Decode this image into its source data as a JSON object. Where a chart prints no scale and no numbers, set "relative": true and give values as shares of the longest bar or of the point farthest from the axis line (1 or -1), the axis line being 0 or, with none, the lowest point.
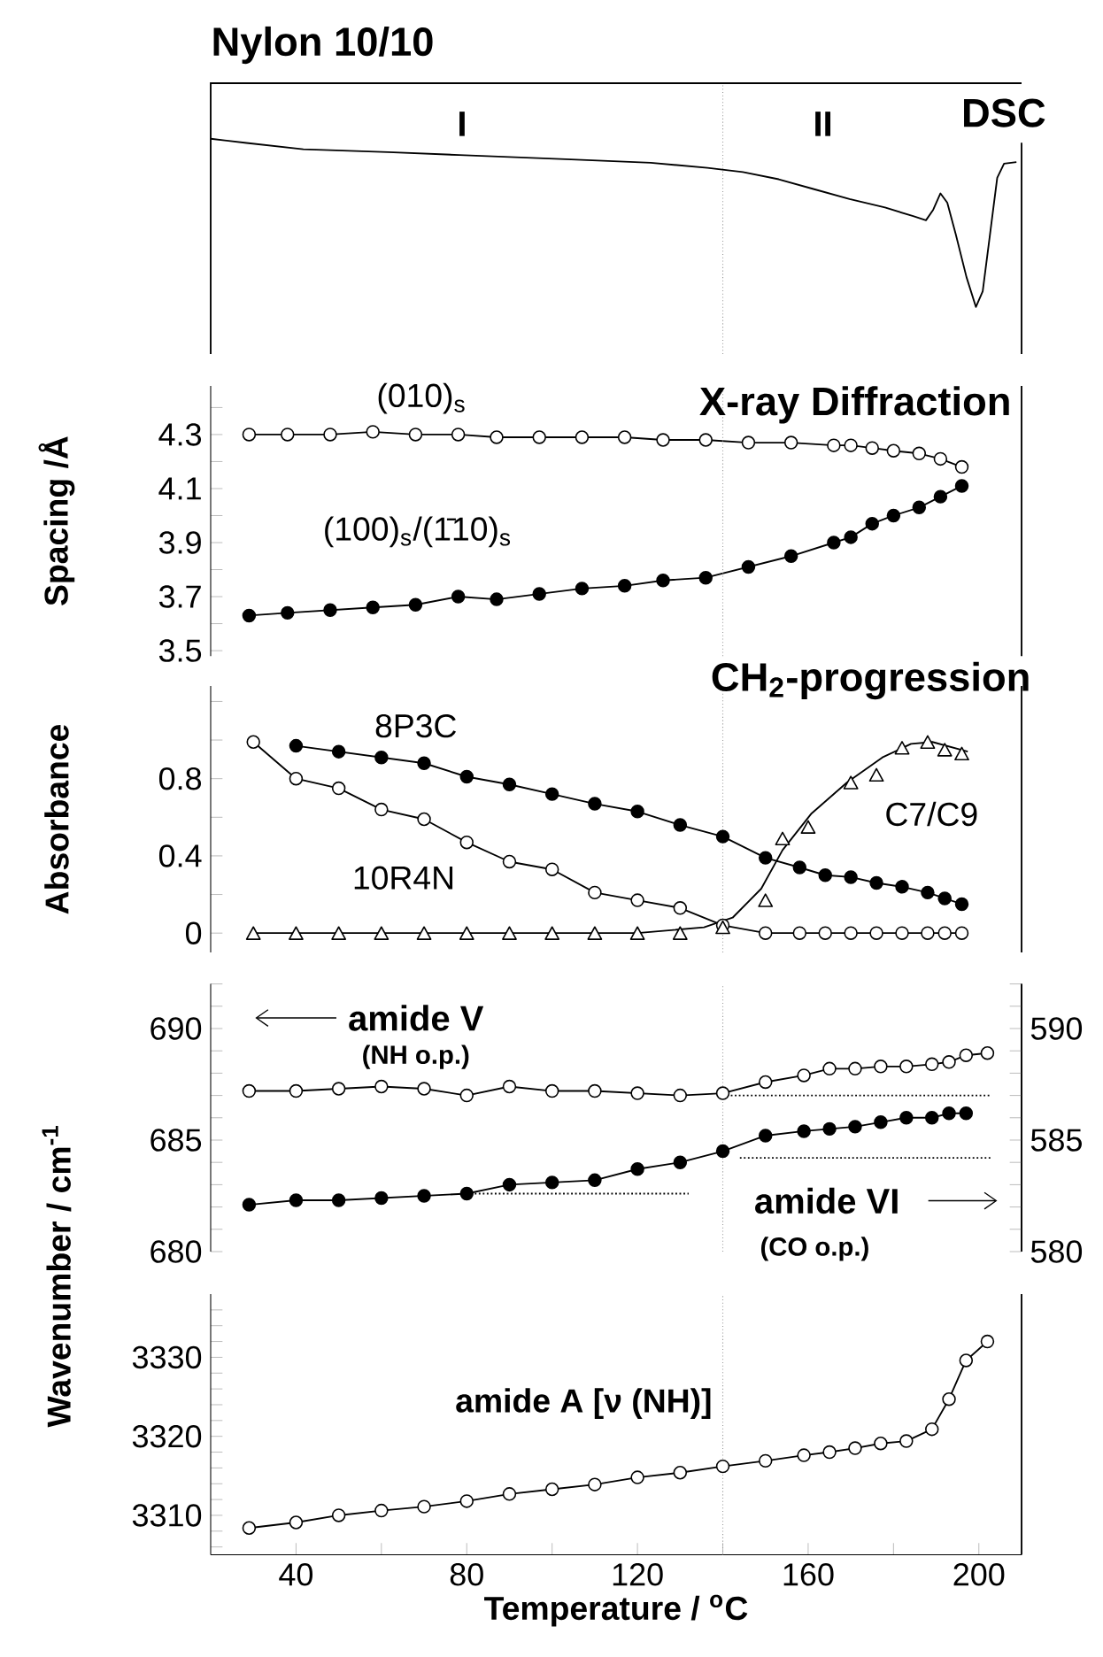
{
  "chart_data": [
    {
      "type": "line",
      "title": "Nylon 10/10",
      "annotations": [
        "I",
        "II",
        "DSC"
      ],
      "relative": true,
      "xlim": [
        20,
        210
      ],
      "tick_labels": false,
      "ref_lines": [
        {
          "axis": "x",
          "value": 140,
          "line_style": "dotted",
          "color": "#999999"
        }
      ],
      "series": [
        {
          "color": "#000000",
          "x": [
            20,
            28.4,
            41.7,
            61.6,
            78.2,
            103.2,
            123.1,
            136.4,
            144.7,
            153.1,
            161.4,
            169.7,
            178,
            184.6,
            187.6,
            189.3,
            191,
            192.6,
            194.6,
            197.1,
            199.3,
            200.9,
            202.6,
            204.3,
            205.9,
            208.8
          ],
          "values": [
            1.0,
            0.975,
            0.937,
            0.92,
            0.903,
            0.878,
            0.857,
            0.827,
            0.802,
            0.759,
            0.7,
            0.641,
            0.591,
            0.54,
            0.515,
            0.578,
            0.675,
            0.62,
            0.43,
            0.177,
            0,
            0.093,
            0.43,
            0.768,
            0.852,
            0.861
          ]
        }
      ]
    },
    {
      "type": "line",
      "ylabel": "Spacing /Å",
      "annotations": [
        "X-ray Diffraction"
      ],
      "xlim": [
        20,
        210
      ],
      "ylim": [
        3.48,
        4.48
      ],
      "tick_labels": "y",
      "yticks": [
        3.5,
        {
          "value": 3.6,
          "label": null
        },
        3.7,
        {
          "value": 3.8,
          "label": null
        },
        3.9,
        {
          "value": 4.0,
          "label": null
        },
        4.1,
        {
          "value": 4.2,
          "label": null
        },
        4.3,
        {
          "value": 4.4,
          "label": null
        }
      ],
      "ref_lines": [
        {
          "axis": "x",
          "value": 140,
          "line_style": "dotted",
          "color": "#999999"
        }
      ],
      "series": [
        {
          "name": "(010)$_{s}$",
          "color": "#ffffff",
          "marker": "circle",
          "x": [
            29,
            38,
            48,
            58,
            68,
            78,
            87,
            97,
            107,
            117,
            126,
            136,
            146,
            156,
            166,
            170,
            175,
            180,
            186,
            191,
            196
          ],
          "values": [
            4.3,
            4.3,
            4.3,
            4.31,
            4.3,
            4.3,
            4.29,
            4.29,
            4.29,
            4.29,
            4.28,
            4.28,
            4.27,
            4.27,
            4.26,
            4.26,
            4.25,
            4.24,
            4.23,
            4.21,
            4.18
          ]
        },
        {
          "name": "(100)$_{s}$/(1̄10)$_{s}$",
          "color": "#000000",
          "marker": "circle",
          "x": [
            29,
            38,
            48,
            58,
            68,
            78,
            87,
            97,
            107,
            117,
            126,
            136,
            146,
            156,
            166,
            170,
            175,
            180,
            186,
            191,
            196
          ],
          "values": [
            3.63,
            3.64,
            3.65,
            3.66,
            3.67,
            3.7,
            3.69,
            3.71,
            3.73,
            3.74,
            3.76,
            3.77,
            3.81,
            3.85,
            3.9,
            3.92,
            3.97,
            4.0,
            4.03,
            4.07,
            4.11
          ]
        }
      ]
    },
    {
      "type": "line",
      "ylabel": "Absorbance",
      "annotations": [
        "CH$_{2}$-progression"
      ],
      "xlim": [
        20,
        210
      ],
      "ylim": [
        -0.1,
        1.28
      ],
      "tick_labels": "y",
      "yticks": [
        0,
        {
          "value": 0.2,
          "label": null
        },
        0.4,
        {
          "value": 0.6,
          "label": null
        },
        0.8,
        {
          "value": 1.0,
          "label": null
        },
        {
          "value": 1.2,
          "label": null
        }
      ],
      "ref_lines": [
        {
          "axis": "x",
          "value": 140,
          "line_style": "dotted",
          "color": "#999999"
        }
      ],
      "series": [
        {
          "name": "8P3C",
          "color": "#000000",
          "marker": "circle",
          "x": [
            40,
            50,
            60,
            70,
            80,
            90,
            100,
            110,
            120,
            130,
            140,
            150,
            158,
            164,
            170,
            176,
            182,
            188,
            192,
            196
          ],
          "values": [
            0.97,
            0.94,
            0.91,
            0.88,
            0.81,
            0.77,
            0.72,
            0.67,
            0.63,
            0.56,
            0.5,
            0.39,
            0.34,
            0.3,
            0.29,
            0.26,
            0.24,
            0.21,
            0.18,
            0.15
          ]
        },
        {
          "name": "10R4N",
          "color": "#ffffff",
          "marker": "circle",
          "x": [
            30,
            40,
            50,
            60,
            70,
            80,
            90,
            100,
            110,
            120,
            130,
            140,
            150,
            158,
            164,
            170,
            176,
            182,
            188,
            192,
            196
          ],
          "values": [
            0.99,
            0.8,
            0.75,
            0.64,
            0.59,
            0.47,
            0.37,
            0.33,
            0.21,
            0.17,
            0.13,
            0.04,
            0,
            0,
            0,
            0,
            0,
            0,
            0,
            0,
            0
          ]
        },
        {
          "name": "C7/C9",
          "type": "scatter",
          "color": "#ffffff",
          "marker": "triangle",
          "x": [
            30,
            40,
            50,
            60,
            70,
            80,
            90,
            100,
            110,
            120,
            130,
            140,
            150,
            154,
            160,
            170,
            176,
            182,
            188,
            192,
            196
          ],
          "values": [
            0,
            0,
            0,
            0,
            0,
            0,
            0,
            0,
            0,
            0,
            0,
            0.03,
            0.17,
            0.49,
            0.55,
            0.78,
            0.82,
            0.96,
            0.99,
            0.95,
            0.93
          ]
        },
        {
          "color": "#000000",
          "x": [
            30,
            120,
            135.6,
            142.3,
            149,
            154,
            160.8,
            169.1,
            177.4,
            184.1,
            189.1,
            197.4
          ],
          "values": [
            0,
            0,
            0.03,
            0.08,
            0.23,
            0.43,
            0.62,
            0.78,
            0.91,
            0.98,
            0.99,
            0.94
          ]
        }
      ]
    },
    {
      "type": "line",
      "ylabel": "Wavenumber / cm$^{-1}$",
      "annotations": [
        "(NH o.p.)",
        "(CO o.p.)"
      ],
      "xlim": [
        20,
        210
      ],
      "ylim": [
        680,
        692
      ],
      "y2lim": [
        580,
        592
      ],
      "tick_labels": "y",
      "yticks": [
        680,
        {
          "value": 681,
          "label": null
        },
        {
          "value": 682,
          "label": null
        },
        {
          "value": 683,
          "label": null
        },
        {
          "value": 684,
          "label": null
        },
        685,
        {
          "value": 686,
          "label": null
        },
        {
          "value": 687,
          "label": null
        },
        {
          "value": 688,
          "label": null
        },
        {
          "value": 689,
          "label": null
        },
        690,
        {
          "value": 691,
          "label": null
        },
        {
          "value": 692,
          "label": null
        }
      ],
      "y2ticks": [
        580,
        {
          "value": 581,
          "label": null
        },
        {
          "value": 582,
          "label": null
        },
        {
          "value": 583,
          "label": null
        },
        {
          "value": 584,
          "label": null
        },
        585,
        {
          "value": 586,
          "label": null
        },
        {
          "value": 587,
          "label": null
        },
        {
          "value": 588,
          "label": null
        },
        {
          "value": 589,
          "label": null
        },
        590,
        {
          "value": 591,
          "label": null
        },
        {
          "value": 592,
          "label": null
        }
      ],
      "ref_lines": [
        {
          "axis": "x",
          "value": 140,
          "line_style": "dotted",
          "color": "#999999"
        }
      ],
      "series": [
        {
          "name": "amide V",
          "color": "#ffffff",
          "marker": "circle",
          "x": [
            29,
            40,
            50,
            60,
            70,
            80,
            90,
            100,
            110,
            120,
            130,
            140,
            150,
            159,
            165,
            171,
            177,
            183,
            189,
            193,
            197,
            202
          ],
          "values": [
            687.2,
            687.2,
            687.3,
            687.4,
            687.3,
            687.0,
            687.4,
            687.2,
            687.2,
            687.1,
            687.0,
            687.1,
            687.6,
            687.9,
            688.2,
            688.2,
            688.3,
            688.3,
            688.4,
            688.5,
            688.8,
            688.9
          ]
        },
        {
          "name": "amide VI",
          "color": "#000000",
          "marker": "circle",
          "axis": "y2",
          "x": [
            29,
            40,
            50,
            60,
            70,
            80,
            90,
            100,
            110,
            120,
            130,
            140,
            150,
            159,
            165,
            171,
            177,
            183,
            189,
            193,
            197
          ],
          "values": [
            582.1,
            582.3,
            582.3,
            582.4,
            582.5,
            582.6,
            583.0,
            583.1,
            583.2,
            583.7,
            584.0,
            584.5,
            585.2,
            585.4,
            585.5,
            585.6,
            585.8,
            586.0,
            586.0,
            586.2,
            586.2
          ]
        },
        {
          "color": "#000000",
          "line_style": "dotted",
          "x": [
            140,
            203
          ],
          "values": [
            687.0,
            687.0
          ]
        },
        {
          "color": "#000000",
          "line_style": "dotted",
          "axis": "y2",
          "x": [
            80,
            132
          ],
          "values": [
            582.6,
            582.6
          ]
        },
        {
          "color": "#000000",
          "line_style": "dotted",
          "axis": "y2",
          "x": [
            144,
            203
          ],
          "values": [
            584.2,
            584.2
          ]
        }
      ]
    },
    {
      "type": "line",
      "xlabel": "Temperature / $^{o}$C",
      "xlim": [
        20,
        210
      ],
      "ylim": [
        3305,
        3338
      ],
      "xticks": [
        40,
        {
          "value": 60,
          "label": null
        },
        80,
        {
          "value": 100,
          "label": null
        },
        120,
        {
          "value": 140,
          "label": null
        },
        160,
        {
          "value": 180,
          "label": null
        },
        200
      ],
      "yticks": [
        {
          "value": 3306,
          "label": null
        },
        {
          "value": 3308,
          "label": null
        },
        3310,
        {
          "value": 3312,
          "label": null
        },
        {
          "value": 3314,
          "label": null
        },
        {
          "value": 3316,
          "label": null
        },
        {
          "value": 3318,
          "label": null
        },
        3320,
        {
          "value": 3322,
          "label": null
        },
        {
          "value": 3324,
          "label": null
        },
        {
          "value": 3326,
          "label": null
        },
        {
          "value": 3328,
          "label": null
        },
        3330,
        {
          "value": 3332,
          "label": null
        },
        {
          "value": 3334,
          "label": null
        },
        {
          "value": 3336,
          "label": null
        }
      ],
      "ref_lines": [
        {
          "axis": "x",
          "value": 140,
          "line_style": "dotted",
          "color": "#999999"
        }
      ],
      "series": [
        {
          "name": "amide A  [ν (NH)]",
          "color": "#ffffff",
          "marker": "circle",
          "x": [
            29,
            40,
            50,
            60,
            70,
            80,
            90,
            100,
            110,
            120,
            130,
            140,
            150,
            159,
            165,
            171,
            177,
            183,
            189,
            193,
            197,
            202
          ],
          "values": [
            3308.4,
            3309.1,
            3310.0,
            3310.6,
            3311.1,
            3311.8,
            3312.7,
            3313.3,
            3313.9,
            3314.8,
            3315.4,
            3316.2,
            3316.9,
            3317.6,
            3318.0,
            3318.5,
            3319.1,
            3319.4,
            3320.9,
            3324.7,
            3329.6,
            3332.0
          ]
        }
      ]
    }
  ]
}
